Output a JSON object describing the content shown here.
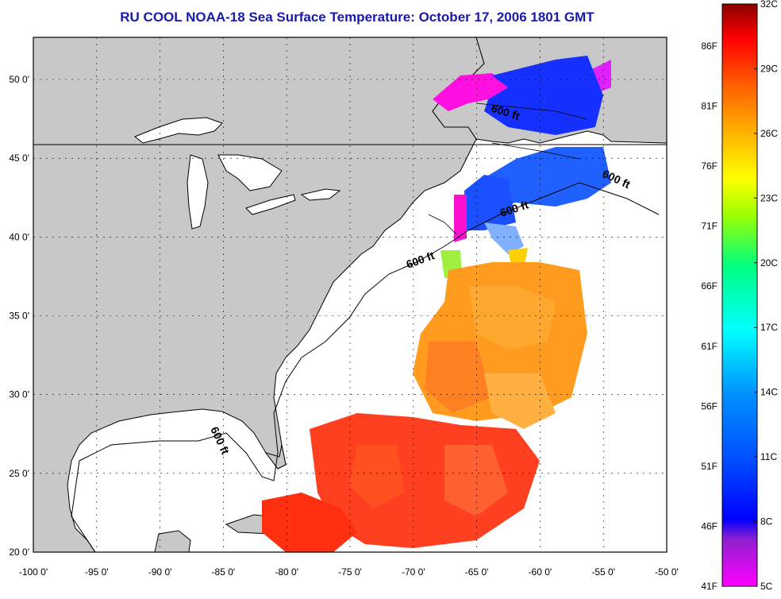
{
  "title": "RU COOL  NOAA-18  Sea Surface Temperature:  October 17, 2006 1801 GMT",
  "map": {
    "lon_ticks": [
      "-100 0'",
      "-95 0'",
      "-90 0'",
      "-85 0'",
      "-80 0'",
      "-75 0'",
      "-70 0'",
      "-65 0'",
      "-60 0'",
      "-55 0'",
      "-50 0'"
    ],
    "lat_ticks": [
      "20 0'",
      "25 0'",
      "30 0'",
      "35 0'",
      "40 0'",
      "45 0'",
      "50 0'"
    ],
    "isobath_labels": [
      "600 ft",
      "600 ft",
      "600 ft",
      "600 ft",
      "600 ft"
    ],
    "colors": {
      "land": "#c8c8c8",
      "ocean": "#ffffff",
      "frame": "#000000"
    }
  },
  "colorbar": {
    "fahrenheit": [
      "41F",
      "46F",
      "51F",
      "56F",
      "61F",
      "66F",
      "71F",
      "76F",
      "81F",
      "86F"
    ],
    "celsius": [
      "5C",
      "8C",
      "11C",
      "14C",
      "17C",
      "20C",
      "23C",
      "26C",
      "29C",
      "32C"
    ],
    "colors": [
      "#ff00ff",
      "#8000ff",
      "#0000ff",
      "#0080ff",
      "#00ffff",
      "#00ff80",
      "#80ff00",
      "#ffff00",
      "#ffa000",
      "#ff5000",
      "#ff0000",
      "#8b0000"
    ]
  }
}
